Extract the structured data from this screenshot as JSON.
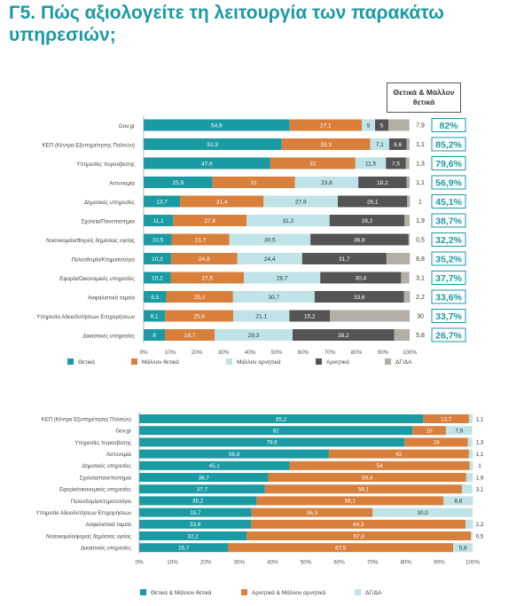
{
  "title": "Γ5. Πώς αξιολογείτε τη λειτουργία των παρακάτω υπηρεσιών;",
  "column_header": "Θετικά & Μάλλον θετικά",
  "colors": {
    "teal": "#1a9aa3",
    "orange": "#d87f3b",
    "lightblue": "#bfe3e6",
    "darkgray": "#545454",
    "graybeige": "#b3aea6"
  },
  "chart_data": [
    {
      "type": "bar",
      "orientation": "horizontal",
      "stacked": true,
      "categories": [
        "Gov.gr",
        "ΚΕΠ (Κέντρα Εξυπηρέτησης Πολιτών)",
        "Υπηρεσίες πυροσβεσης",
        "Αστυνομία",
        "Δημοτικές υπηρεσίες",
        "Σχολεία/Πανεπιστήμια",
        "Νοσοκομεία/Φορείς δημόσιας υγείας",
        "Πολεοδομία/Κτηματολόγιο",
        "Εφορία/Οικονομικές υπηρεσίες",
        "Ασφαλιστικά ταμεία",
        "Υπηρεσία Αδειοδοτήσεων Επιχειρήσεων",
        "Δικαστικές υπηρεσίες"
      ],
      "series": [
        {
          "name": "Θετικά",
          "color": "#1a9aa3",
          "values": [
            54.9,
            51.9,
            47.6,
            25.9,
            13.7,
            11.1,
            10.5,
            10.3,
            10.2,
            8.5,
            8.1,
            8
          ]
        },
        {
          "name": "Μάλλον θετικά",
          "color": "#d87f3b",
          "values": [
            27.1,
            33.3,
            32,
            31,
            31.4,
            27.6,
            21.7,
            24.9,
            27.5,
            25.1,
            25.6,
            18.7
          ]
        },
        {
          "name": "Μάλλον αρνητικά",
          "color": "#bfe3e6",
          "values": [
            5,
            7.1,
            11.5,
            23.8,
            27.9,
            31.2,
            30.5,
            24.4,
            28.7,
            30.7,
            21.1,
            29.3
          ]
        },
        {
          "name": "Αρνητικά",
          "color": "#545454",
          "values": [
            5,
            6.6,
            7.5,
            18.2,
            26.1,
            28.2,
            36.8,
            31.7,
            30.4,
            33.6,
            15.2,
            38.2
          ]
        },
        {
          "name": "ΔΓ/ΔΑ",
          "color": "#b3aea6",
          "values": [
            7.9,
            1.1,
            1.3,
            1.1,
            1,
            1.9,
            0.5,
            8.8,
            3.1,
            2.2,
            30,
            5.8
          ]
        }
      ],
      "positive_totals": [
        "82%",
        "85,2%",
        "79,6%",
        "56,9%",
        "45,1%",
        "38,7%",
        "32,2%",
        "35,2%",
        "37,7%",
        "33,6%",
        "33,7%",
        "26,7%"
      ],
      "xlim": [
        0,
        100
      ],
      "x_ticks": [
        "0%",
        "10%",
        "20%",
        "30%",
        "40%",
        "50%",
        "60%",
        "70%",
        "80%",
        "90%",
        "100%"
      ],
      "legend_position": "bottom",
      "grid": false
    },
    {
      "type": "bar",
      "orientation": "horizontal",
      "stacked": true,
      "categories": [
        "ΚΕΠ (Κέντρα Εξυπηρέτησης Πολιτών)",
        "Gov.gr",
        "Υπηρεσίες πυροσβεσης",
        "Αστυνομία",
        "Δημοτικές υπηρεσίες",
        "Σχολεία/πανεπιστήμια",
        "Εφορία/οικονομικές υπηρεσίες",
        "Πολεοδομία/κτηματολόγιο",
        "Υπηρεσία Αδειοδοτήσεων Επιχειρήσεων",
        "Ασφαλιστικά ταμεία",
        "Νοσοκομεία/φορείς δημόσιας υγείας",
        "Δικαστικές υπηρεσίες"
      ],
      "series": [
        {
          "name": "Θετικά & Μάλλον θετικά",
          "color": "#1a9aa3",
          "values": [
            85.2,
            82,
            79.6,
            56.9,
            45.1,
            38.7,
            37.7,
            35.2,
            33.7,
            33.6,
            32.2,
            26.7
          ]
        },
        {
          "name": "Αρνητικά & Μάλλον αρνητικά",
          "color": "#d87f3b",
          "values": [
            13.7,
            10,
            19,
            42,
            54,
            59.4,
            59.1,
            56.1,
            36.3,
            64.3,
            67.3,
            67.5
          ]
        },
        {
          "name": "ΔΓ/ΔΑ",
          "color": "#bfe3e6",
          "values": [
            1.1,
            7.9,
            1.3,
            1.1,
            1,
            1.9,
            3.1,
            8.8,
            30.0,
            2.2,
            0.5,
            5.8
          ]
        }
      ],
      "value_labels": [
        [
          "85,2",
          "13,7",
          "1,1"
        ],
        [
          "82",
          "10",
          "7,9"
        ],
        [
          "79,6",
          "19",
          "1,3"
        ],
        [
          "56,9",
          "42",
          "1,1"
        ],
        [
          "45,1",
          "54",
          "1"
        ],
        [
          "38,7",
          "59,4",
          "1,9"
        ],
        [
          "37,7",
          "59,1",
          "3,1"
        ],
        [
          "35,2",
          "56,1",
          "8,8"
        ],
        [
          "33,7",
          "36,3",
          "30,0"
        ],
        [
          "33,6",
          "64,3",
          "2,2"
        ],
        [
          "32,2",
          "67,3",
          "0,5"
        ],
        [
          "26,7",
          "67,5",
          "5,8"
        ]
      ],
      "xlim": [
        0,
        100
      ],
      "x_ticks": [
        "0%",
        "10%",
        "20%",
        "30%",
        "40%",
        "50%",
        "60%",
        "70%",
        "80%",
        "90%",
        "100%"
      ],
      "legend_position": "bottom",
      "grid": false
    }
  ]
}
